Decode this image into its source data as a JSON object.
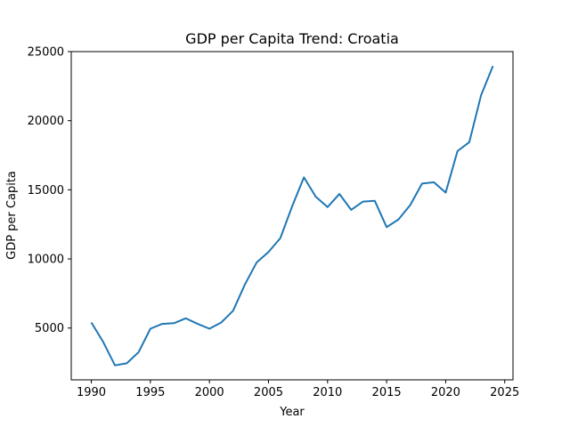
{
  "chart_data": {
    "type": "line",
    "title": "GDP per Capita Trend: Croatia",
    "xlabel": "Year",
    "ylabel": "GDP per Capita",
    "xlim": [
      1988.3,
      2025.7
    ],
    "ylim": [
      1250,
      25000
    ],
    "xticks": [
      1990,
      1995,
      2000,
      2005,
      2010,
      2015,
      2020,
      2025
    ],
    "yticks": [
      5000,
      10000,
      15000,
      20000,
      25000
    ],
    "grid": false,
    "series_color": "#1f77b4",
    "series": [
      {
        "x": [
          1990,
          1991,
          1992,
          1993,
          1994,
          1995,
          1996,
          1997,
          1998,
          1999,
          2000,
          2001,
          2002,
          2003,
          2004,
          2005,
          2006,
          2007,
          2008,
          2009,
          2010,
          2011,
          2012,
          2013,
          2014,
          2015,
          2016,
          2017,
          2018,
          2019,
          2020,
          2021,
          2022,
          2023,
          2024
        ],
        "values": [
          5400,
          4000,
          2300,
          2450,
          3250,
          4950,
          5300,
          5350,
          5700,
          5300,
          4950,
          5400,
          6250,
          8150,
          9750,
          10500,
          11500,
          13800,
          15900,
          14500,
          13750,
          14700,
          13550,
          14150,
          14200,
          12300,
          12850,
          13900,
          15450,
          15550,
          14800,
          17800,
          18450,
          21850,
          23950
        ]
      }
    ]
  }
}
